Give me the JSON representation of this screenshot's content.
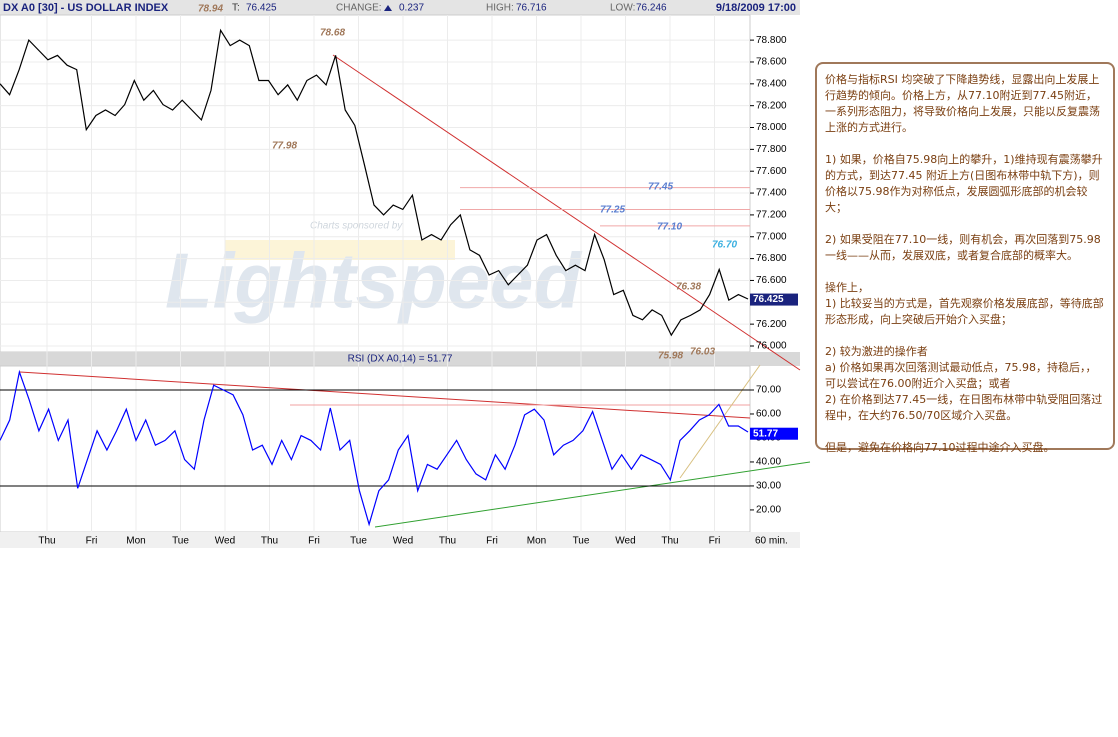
{
  "header": {
    "title": "DX A0 [30] - US DOLLAR INDEX",
    "last_label": "T:",
    "last": "76.425",
    "change_label": "CHANGE:",
    "change": "0.237",
    "high_label": "HIGH:",
    "high": "76.716",
    "low_label": "LOW:",
    "low": "76.246",
    "datetime": "9/18/2009 17:00"
  },
  "watermark": "Lightspeed",
  "sponsor": "Charts sponsored by",
  "chart_data": [
    {
      "type": "line",
      "title": "DX A0 [30] - US DOLLAR INDEX",
      "series": [
        {
          "name": "DX A0",
          "color": "#000000",
          "values": [
            78.4,
            78.3,
            78.53,
            78.8,
            78.71,
            78.62,
            78.66,
            78.57,
            78.53,
            77.98,
            78.11,
            78.16,
            78.11,
            78.21,
            78.43,
            78.25,
            78.34,
            78.21,
            78.16,
            78.25,
            78.16,
            78.07,
            78.34,
            78.89,
            78.75,
            78.8,
            78.75,
            78.43,
            78.43,
            78.3,
            78.39,
            78.25,
            78.43,
            78.48,
            78.39,
            78.66,
            78.16,
            78.02,
            77.66,
            77.29,
            77.2,
            77.29,
            77.25,
            77.38,
            76.97,
            77.02,
            76.97,
            77.11,
            77.2,
            76.88,
            76.83,
            76.65,
            76.69,
            76.56,
            76.65,
            76.74,
            76.97,
            77.02,
            76.83,
            76.69,
            76.74,
            76.69,
            77.02,
            76.79,
            76.47,
            76.51,
            76.28,
            76.24,
            76.33,
            76.28,
            76.1,
            76.24,
            76.28,
            76.33,
            76.47,
            76.7,
            76.42,
            76.47,
            76.43
          ]
        }
      ],
      "ylim": [
        75.945,
        79.03
      ],
      "yticks": [
        {
          "value": 76,
          "label": "76.000"
        },
        {
          "value": 76.2,
          "label": "76.200"
        },
        {
          "value": 76.4,
          "label": "76.400"
        },
        {
          "value": 76.6,
          "label": "76.600"
        },
        {
          "value": 76.8,
          "label": "76.800"
        },
        {
          "value": 77,
          "label": "77.000"
        },
        {
          "value": 77.2,
          "label": "77.200"
        },
        {
          "value": 77.4,
          "label": "77.400"
        },
        {
          "value": 77.6,
          "label": "77.600"
        },
        {
          "value": 77.8,
          "label": "77.800"
        },
        {
          "value": 78,
          "label": "78.000"
        },
        {
          "value": 78.2,
          "label": "78.200"
        },
        {
          "value": 78.4,
          "label": "78.400"
        },
        {
          "value": 78.6,
          "label": "78.600"
        },
        {
          "value": 78.8,
          "label": "78.800"
        }
      ],
      "grid": true,
      "last_value": {
        "value": 76.425,
        "label": "76.425"
      },
      "reference_lines": [
        77.45,
        77.25,
        77.1
      ],
      "annotations": [
        {
          "label": "78.94",
          "color": "#a0785a"
        },
        {
          "label": "78.68",
          "color": "#a0785a"
        },
        {
          "label": "77.98",
          "color": "#a0785a"
        },
        {
          "label": "77.45",
          "color": "#5b7fd0"
        },
        {
          "label": "77.25",
          "color": "#5b7fd0"
        },
        {
          "label": "77.10",
          "color": "#5b7fd0"
        },
        {
          "label": "76.70",
          "color": "#3cb0e0"
        },
        {
          "label": "76.38",
          "color": "#a0785a"
        },
        {
          "label": "76.03",
          "color": "#a0785a"
        },
        {
          "label": "75.98",
          "color": "#a0785a"
        }
      ]
    },
    {
      "type": "line",
      "title": "RSI (DX A0,14) = 51.77",
      "series": [
        {
          "name": "RSI",
          "color": "#0000ff",
          "values": [
            49,
            57.5,
            77.5,
            66,
            53,
            62,
            49,
            57.5,
            29,
            41,
            53,
            45,
            53,
            62,
            49,
            57.5,
            47,
            49,
            53,
            41,
            37,
            57.5,
            72,
            70,
            68,
            59.6,
            45,
            47,
            39,
            49,
            41,
            51,
            49,
            45,
            62.5,
            45,
            49,
            28,
            14,
            28,
            32.5,
            45,
            51,
            28,
            39,
            37,
            43,
            49,
            41,
            35,
            32.5,
            43,
            37,
            47,
            59.6,
            62,
            57.5,
            43,
            47,
            49,
            53,
            61,
            49,
            37,
            43,
            37,
            43,
            41,
            39,
            32.5,
            49,
            53,
            57.5,
            59.6,
            64,
            55,
            55,
            52.5
          ]
        }
      ],
      "ylim": [
        10.8,
        80
      ],
      "yticks": [
        {
          "value": 20,
          "label": "20.00"
        },
        {
          "value": 30,
          "label": "30.00"
        },
        {
          "value": 40,
          "label": "40.00"
        },
        {
          "value": 50,
          "label": "50.00"
        },
        {
          "value": 60,
          "label": "60.00"
        },
        {
          "value": 70,
          "label": "70.00"
        }
      ],
      "levels": [
        70,
        30
      ],
      "last_value": {
        "value": 51.77,
        "label": "51.77"
      },
      "x_tick_labels": [
        "Thu",
        "Fri",
        "Mon",
        "Tue",
        "Wed",
        "Thu",
        "Fri",
        "Tue",
        "Wed",
        "Thu",
        "Fri",
        "Mon",
        "Tue",
        "Wed",
        "Thu",
        "Fri"
      ],
      "x_unit": "60 min."
    }
  ],
  "note": {
    "paragraphs": [
      "价格与指标RSI 均突破了下降趋势线，显露出向上发展上行趋势的倾向。价格上方，从77.10附近到77.45附近，一系列形态阻力，将导致价格向上发展，只能以反复震荡上涨的方式进行。",
      "1) 如果，价格自75.98向上的攀升，1)维持现有震荡攀升的方式，到达77.45 附近上方(日图布林带中轨下方)，则价格以75.98作为对称低点，发展圆弧形底部的机会较大；",
      "2) 如果受阻在77.10一线，则有机会，再次回落到75.98一线——从而，发展双底，或者复合底部的概率大。",
      "操作上，",
      "1) 比较妥当的方式是，首先观察价格发展底部，等待底部形态形成，向上突破后开始介入买盘；",
      "2) 较为激进的操作者",
      "a) 价格如果再次回落测试最动低点，75.98，持稳后，，可以尝试在76.00附近介入买盘；或者",
      "2) 在价格到达77.45一线，在日图布林带中轨受阻回落过程中，在大约76.50/70区域介入买盘。",
      "但是，避免在价格向77.10过程中途介入买盘。"
    ]
  }
}
